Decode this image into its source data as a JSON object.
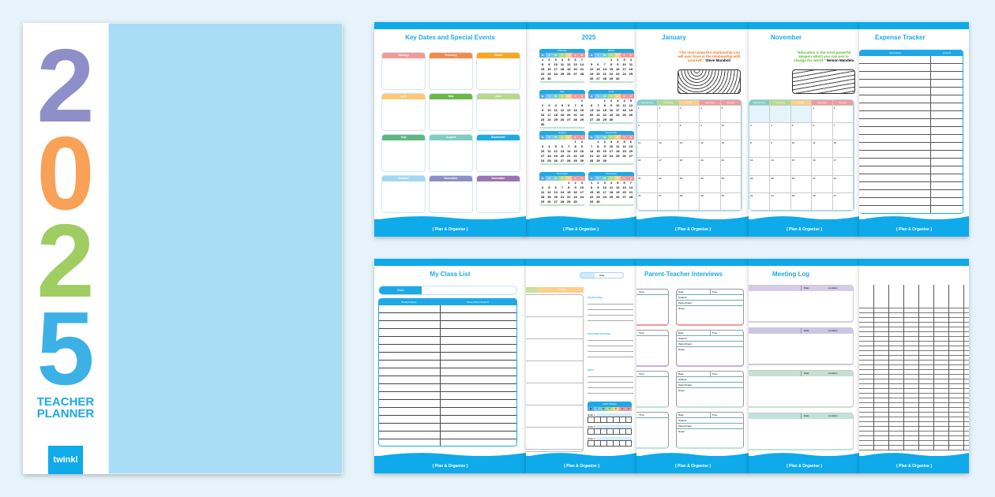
{
  "cover": {
    "digits": [
      "2",
      "0",
      "2",
      "5"
    ],
    "digit_colors": [
      "#8e8fc8",
      "#f9a156",
      "#a0cd62",
      "#3cb1e6"
    ],
    "subtitle_line1": "TEACHER",
    "subtitle_line2": "PLANNER",
    "logo": "twinkl",
    "wave_colors": [
      "#a9dcf5",
      "#c4aed6",
      "#f7c6c4",
      "#fcd08c",
      "#fdf1a6",
      "#c6e19c",
      "#a0d7f5",
      "#c4aed6",
      "#f7c6c4",
      "#fcd08c"
    ]
  },
  "footer": "{ Plan & Organise }",
  "pages": {
    "key_dates": {
      "title": "Key Dates and Special Events",
      "months": [
        "January",
        "February",
        "March",
        "April",
        "May",
        "June",
        "July",
        "August",
        "September",
        "October",
        "November",
        "December"
      ],
      "colors": [
        "#f29a9a",
        "#f58a4e",
        "#f8a81d",
        "#fcc877",
        "#6ab74a",
        "#b6d98a",
        "#5fb77f",
        "#7fccc0",
        "#1ea9e6",
        "#a3d8f4",
        "#8e8fc8",
        "#9d73b5"
      ]
    },
    "year": {
      "title": "2025",
      "months": [
        "February",
        "March",
        "May",
        "June",
        "August",
        "September",
        "November",
        "December"
      ]
    },
    "january": {
      "title": "January",
      "quote": "\"The most powerful relationship you will ever have is the relationship with yourself.\"",
      "author": "Steve Maraboli",
      "days": [
        "Wednesday",
        "Thursday",
        "Friday",
        "Saturday",
        "Sunday"
      ]
    },
    "november": {
      "title": "November",
      "quote": "\"Education is the most powerful weapon which you can use to change the world.\"",
      "author": "Nelson Mandela",
      "days": [
        "Wednesday",
        "Thursday",
        "Friday",
        "Saturday",
        "Sunday"
      ]
    },
    "expense": {
      "title": "Expense Tracker",
      "columns": [
        "Description",
        "Amount"
      ]
    },
    "class_list": {
      "title": "My Class List",
      "class_label": "Class",
      "columns": [
        "Student Name",
        "Notes About Student"
      ]
    },
    "weekly": {
      "date_label": "Date",
      "friday": "Friday",
      "top_priorities": "Top Priorities",
      "secondary_priorities": "Secondary Priorities",
      "other": "Other",
      "habit_tracker": "Habit Tracker",
      "habits": [
        "Habit 1",
        "Habit 2",
        "Habit 3"
      ],
      "habit_days": [
        "M",
        "T",
        "W",
        "T",
        "F",
        "S",
        "S"
      ]
    },
    "ptinterviews": {
      "title": "Parent-Teacher Interviews",
      "labels": [
        "Date:",
        "Time:",
        "Student:",
        "Parent/Carer:",
        "Notes:"
      ]
    },
    "meeting_log": {
      "title": "Meeting Log",
      "labels": [
        "Date:",
        "Location:"
      ]
    }
  }
}
